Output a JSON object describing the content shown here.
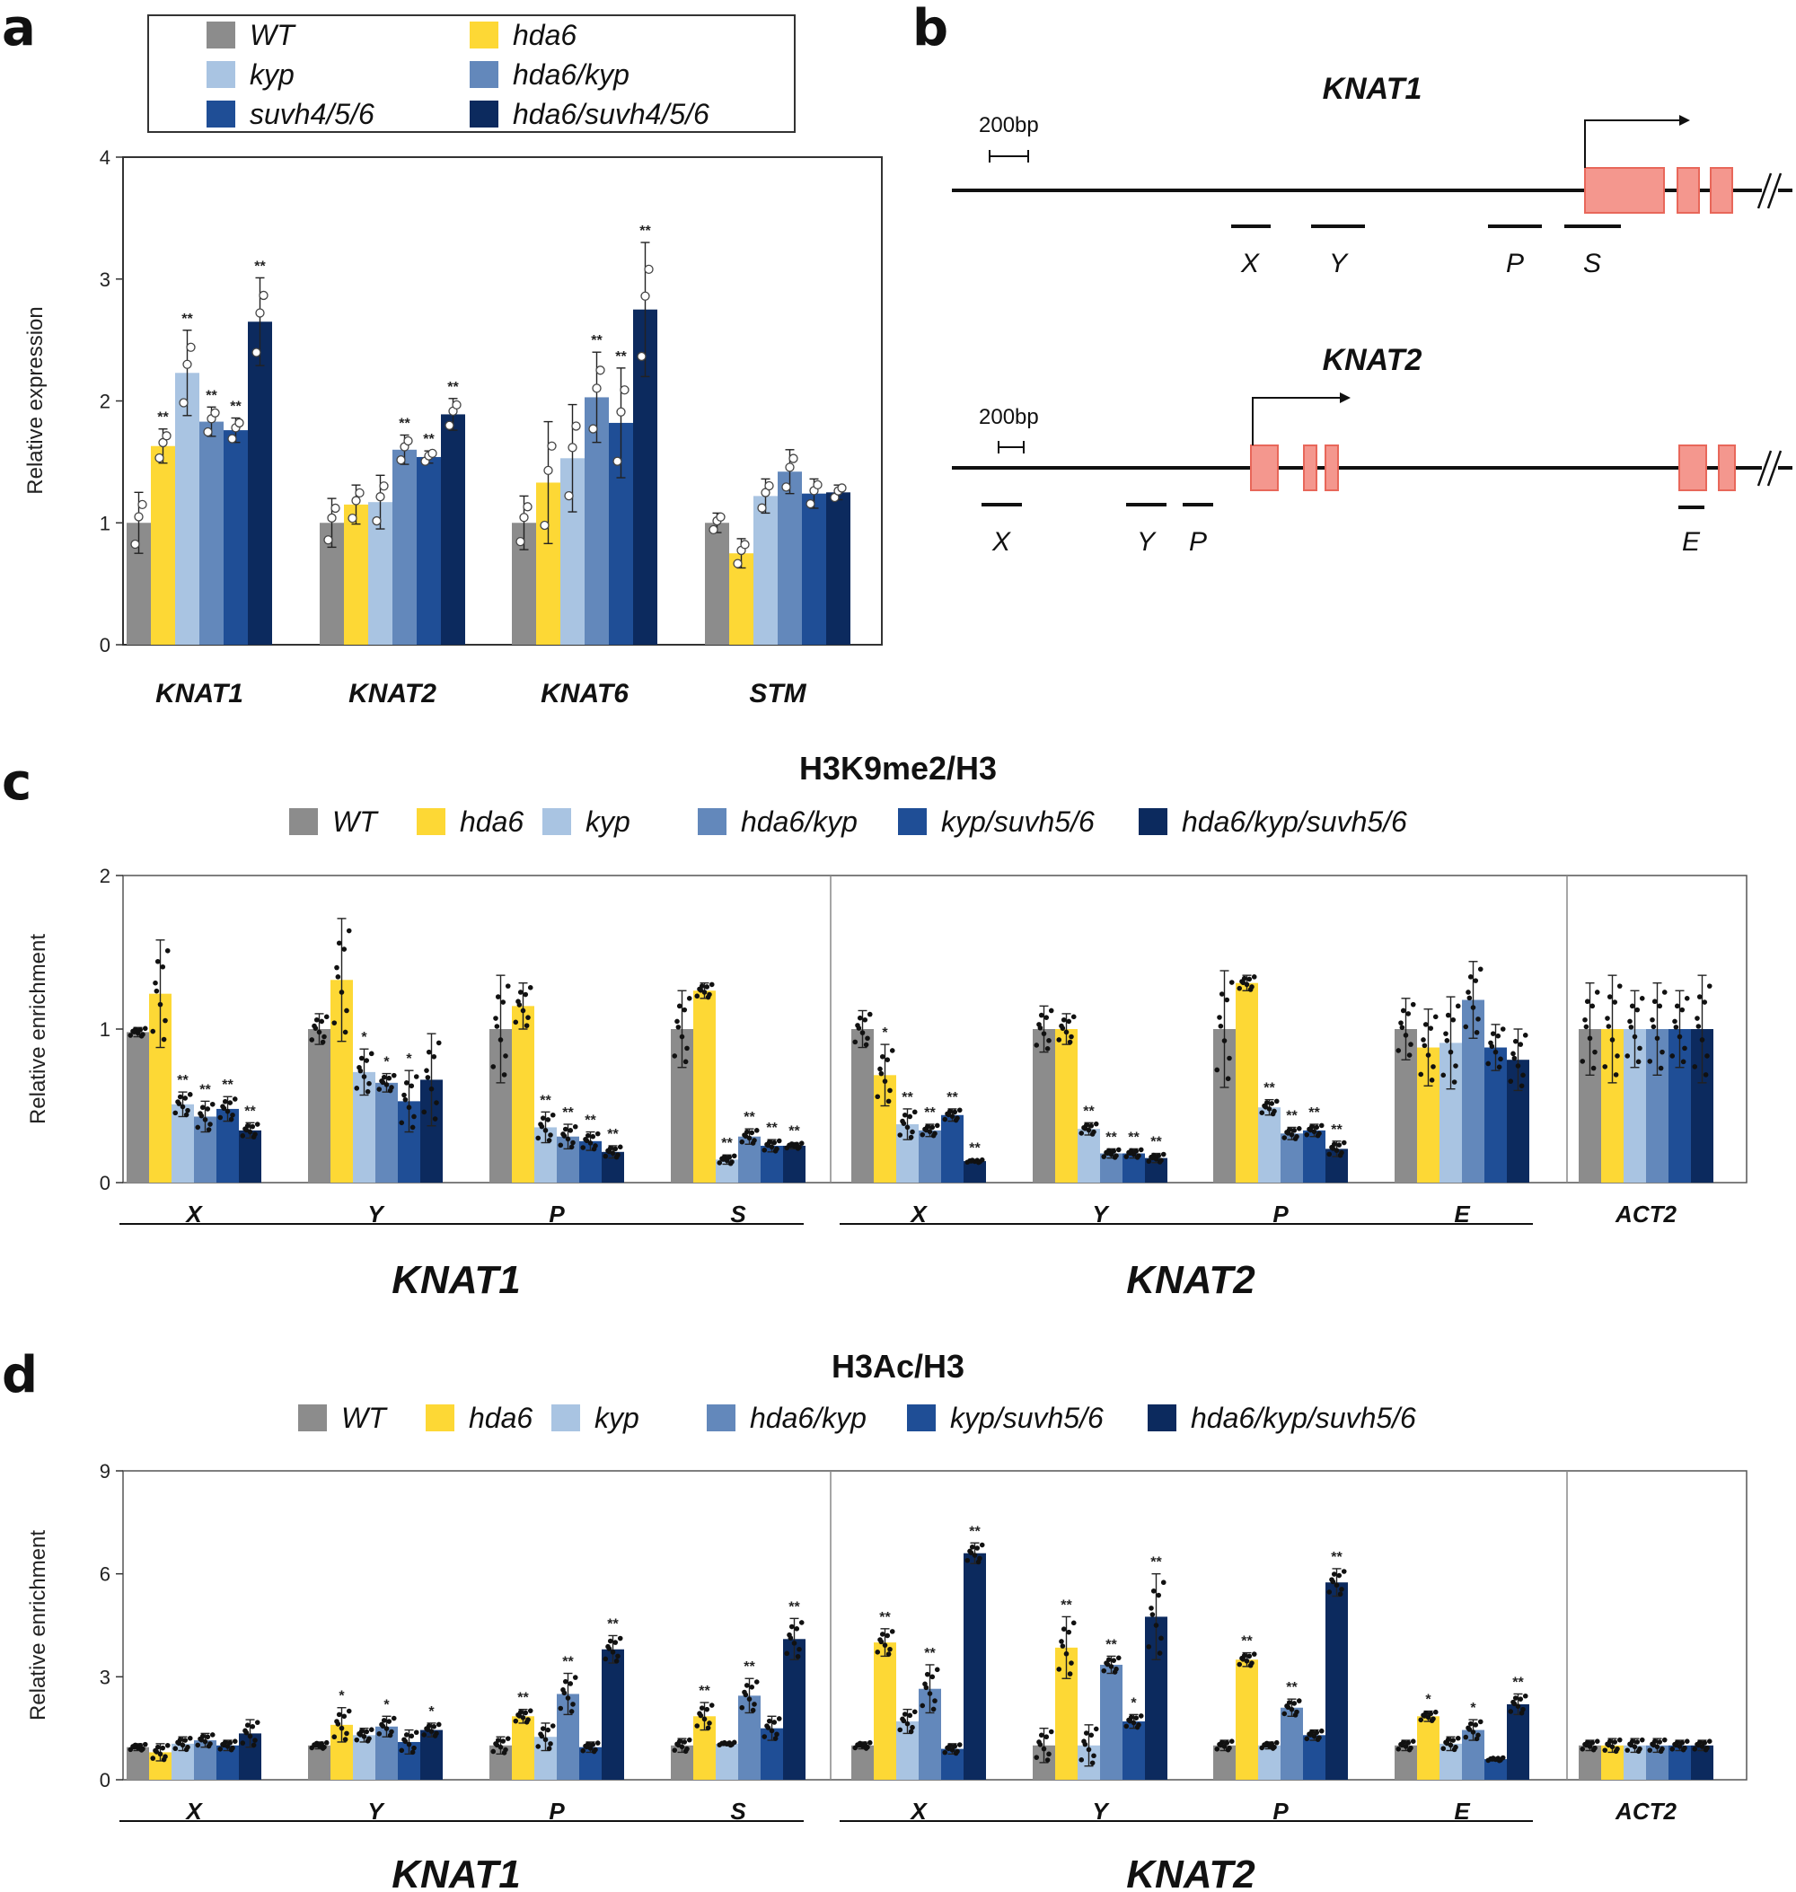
{
  "panel_labels": {
    "a": "a",
    "b": "b",
    "c": "c",
    "d": "d"
  },
  "colors": {
    "WT": "#8c8c8c",
    "hda6": "#fdd835",
    "kyp": "#a9c4e2",
    "hda6_kyp": "#6388bb",
    "suvh": "#1f4e96",
    "triple": "#0c2a5e",
    "exon": "#f4978e",
    "exon_stroke": "#e8675a"
  },
  "chart_data": [
    {
      "id": "a",
      "type": "bar",
      "ylabel": "Relative expression",
      "ylim": [
        0,
        4
      ],
      "yticks": [
        "0",
        "1",
        "2",
        "3",
        "4"
      ],
      "categories": [
        "KNAT1",
        "KNAT2",
        "KNAT6",
        "STM"
      ],
      "legend": [
        "WT",
        "kyp",
        "suvh4/5/6",
        "hda6",
        "hda6/kyp",
        "hda6/suvh4/5/6"
      ],
      "series": [
        {
          "name": "WT",
          "values": [
            1.0,
            1.0,
            1.0,
            1.0
          ],
          "err": [
            0.25,
            0.2,
            0.22,
            0.08
          ],
          "sig": [
            "",
            "",
            "",
            ""
          ]
        },
        {
          "name": "hda6",
          "values": [
            1.63,
            1.15,
            1.33,
            0.75
          ],
          "err": [
            0.14,
            0.16,
            0.5,
            0.12
          ],
          "sig": [
            "**",
            "",
            "",
            ""
          ]
        },
        {
          "name": "kyp",
          "values": [
            2.23,
            1.17,
            1.53,
            1.22
          ],
          "err": [
            0.35,
            0.22,
            0.44,
            0.14
          ],
          "sig": [
            "**",
            "",
            "",
            ""
          ]
        },
        {
          "name": "hda6/kyp",
          "values": [
            1.83,
            1.6,
            2.03,
            1.42
          ],
          "err": [
            0.12,
            0.12,
            0.37,
            0.18
          ],
          "sig": [
            "**",
            "**",
            "**",
            ""
          ]
        },
        {
          "name": "suvh4/5/6",
          "values": [
            1.76,
            1.54,
            1.82,
            1.24
          ],
          "err": [
            0.1,
            0.05,
            0.45,
            0.12
          ],
          "sig": [
            "**",
            "**",
            "**",
            ""
          ]
        },
        {
          "name": "hda6/suvh4/5/6",
          "values": [
            2.65,
            1.89,
            2.75,
            1.25
          ],
          "err": [
            0.36,
            0.13,
            0.55,
            0.06
          ],
          "sig": [
            "**",
            "**",
            "**",
            ""
          ]
        }
      ]
    },
    {
      "id": "c",
      "type": "bar",
      "title": "H3K9me2/H3",
      "ylabel": "Relative enrichment",
      "ylim": [
        0,
        2
      ],
      "yticks": [
        "0",
        "1",
        "2"
      ],
      "legend": [
        "WT",
        "hda6",
        "kyp",
        "hda6/kyp",
        "kyp/suvh5/6",
        "hda6/kyp/suvh5/6"
      ],
      "categories": [
        "X",
        "Y",
        "P",
        "S",
        "X",
        "Y",
        "P",
        "E",
        "ACT2"
      ],
      "groups": [
        "KNAT1",
        "KNAT2"
      ],
      "series": [
        {
          "name": "WT",
          "values": [
            0.98,
            1.0,
            1.0,
            1.0,
            1.0,
            1.0,
            1.0,
            1.0,
            1.0
          ],
          "err": [
            0.03,
            0.1,
            0.35,
            0.25,
            0.12,
            0.15,
            0.38,
            0.2,
            0.3
          ],
          "sig": [
            "",
            "",
            "",
            "",
            "",
            "",
            "",
            "",
            ""
          ]
        },
        {
          "name": "hda6",
          "values": [
            1.23,
            1.32,
            1.15,
            1.25,
            0.7,
            1.0,
            1.3,
            0.88,
            1.0
          ],
          "err": [
            0.35,
            0.4,
            0.15,
            0.05,
            0.2,
            0.1,
            0.05,
            0.25,
            0.35
          ],
          "sig": [
            "",
            "",
            "",
            "",
            "*",
            "",
            "",
            "",
            ""
          ]
        },
        {
          "name": "kyp",
          "values": [
            0.51,
            0.72,
            0.36,
            0.15,
            0.38,
            0.35,
            0.49,
            0.91,
            1.0
          ],
          "err": [
            0.08,
            0.15,
            0.1,
            0.03,
            0.1,
            0.04,
            0.05,
            0.3,
            0.25
          ],
          "sig": [
            "**",
            "*",
            "**",
            "**",
            "**",
            "**",
            "**",
            "",
            ""
          ]
        },
        {
          "name": "hda6/kyp",
          "values": [
            0.43,
            0.65,
            0.3,
            0.3,
            0.34,
            0.19,
            0.32,
            1.19,
            1.0
          ],
          "err": [
            0.1,
            0.06,
            0.08,
            0.05,
            0.04,
            0.03,
            0.04,
            0.25,
            0.3
          ],
          "sig": [
            "**",
            "*",
            "**",
            "**",
            "**",
            "**",
            "**",
            "",
            ""
          ]
        },
        {
          "name": "kyp/suvh5/6",
          "values": [
            0.48,
            0.53,
            0.27,
            0.24,
            0.44,
            0.19,
            0.34,
            0.88,
            1.0
          ],
          "err": [
            0.08,
            0.2,
            0.06,
            0.04,
            0.04,
            0.03,
            0.04,
            0.15,
            0.25
          ],
          "sig": [
            "**",
            "*",
            "**",
            "**",
            "**",
            "**",
            "**",
            "",
            ""
          ]
        },
        {
          "name": "hda6/kyp/suvh5/6",
          "values": [
            0.34,
            0.67,
            0.2,
            0.24,
            0.14,
            0.16,
            0.22,
            0.8,
            1.0
          ],
          "err": [
            0.05,
            0.3,
            0.04,
            0.02,
            0.01,
            0.03,
            0.05,
            0.2,
            0.35
          ],
          "sig": [
            "**",
            "",
            "**",
            "**",
            "**",
            "**",
            "**",
            "",
            ""
          ]
        }
      ]
    },
    {
      "id": "d",
      "type": "bar",
      "title": "H3Ac/H3",
      "ylabel": "Relative enrichment",
      "ylim": [
        0,
        9
      ],
      "yticks": [
        "0",
        "3",
        "6",
        "9"
      ],
      "legend": [
        "WT",
        "hda6",
        "kyp",
        "hda6/kyp",
        "kyp/suvh5/6",
        "hda6/kyp/suvh5/6"
      ],
      "categories": [
        "X",
        "Y",
        "P",
        "S",
        "X",
        "Y",
        "P",
        "E",
        "ACT2"
      ],
      "groups": [
        "KNAT1",
        "KNAT2"
      ],
      "series": [
        {
          "name": "WT",
          "values": [
            0.95,
            1.0,
            1.0,
            1.0,
            1.0,
            1.0,
            1.0,
            1.0,
            1.0
          ],
          "err": [
            0.1,
            0.1,
            0.25,
            0.2,
            0.1,
            0.5,
            0.15,
            0.15,
            0.15
          ],
          "sig": [
            "",
            "",
            "",
            "",
            "",
            "",
            "",
            "",
            ""
          ]
        },
        {
          "name": "hda6",
          "values": [
            0.8,
            1.6,
            1.85,
            1.85,
            4.0,
            3.85,
            3.5,
            1.85,
            1.0
          ],
          "err": [
            0.25,
            0.5,
            0.2,
            0.4,
            0.4,
            0.9,
            0.2,
            0.15,
            0.2
          ],
          "sig": [
            "",
            "*",
            "**",
            "**",
            "**",
            "**",
            "**",
            "*",
            ""
          ]
        },
        {
          "name": "kyp",
          "values": [
            1.05,
            1.3,
            1.25,
            1.05,
            1.7,
            1.0,
            1.0,
            1.05,
            1.0
          ],
          "err": [
            0.2,
            0.2,
            0.4,
            0.05,
            0.35,
            0.6,
            0.1,
            0.2,
            0.2
          ],
          "sig": [
            "",
            "",
            "",
            "",
            "",
            "",
            "",
            "",
            ""
          ]
        },
        {
          "name": "hda6/kyp",
          "values": [
            1.15,
            1.55,
            2.5,
            2.45,
            2.65,
            3.35,
            2.1,
            1.45,
            1.0
          ],
          "err": [
            0.2,
            0.3,
            0.6,
            0.5,
            0.7,
            0.25,
            0.25,
            0.3,
            0.2
          ],
          "sig": [
            "",
            "*",
            "**",
            "**",
            "**",
            "**",
            "**",
            "*",
            ""
          ]
        },
        {
          "name": "kyp/suvh5/6",
          "values": [
            1.0,
            1.1,
            0.95,
            1.5,
            0.9,
            1.7,
            1.3,
            0.6,
            1.0
          ],
          "err": [
            0.15,
            0.35,
            0.15,
            0.35,
            0.15,
            0.2,
            0.15,
            0.05,
            0.15
          ],
          "sig": [
            "",
            "",
            "",
            "",
            "",
            "*",
            "",
            "",
            ""
          ]
        },
        {
          "name": "hda6/kyp/suvh5/6",
          "values": [
            1.35,
            1.45,
            3.8,
            4.1,
            6.6,
            4.75,
            5.75,
            2.2,
            1.0
          ],
          "err": [
            0.4,
            0.2,
            0.4,
            0.6,
            0.3,
            1.25,
            0.4,
            0.3,
            0.15
          ],
          "sig": [
            "",
            "*",
            "**",
            "**",
            "**",
            "**",
            "**",
            "**",
            ""
          ]
        }
      ]
    }
  ],
  "panel_b": {
    "knat1": {
      "title": "KNAT1",
      "scale": "200bp",
      "segments": [
        "X",
        "Y",
        "P",
        "S"
      ]
    },
    "knat2": {
      "title": "KNAT2",
      "scale": "200bp",
      "segments": [
        "X",
        "Y",
        "P",
        "E"
      ]
    }
  }
}
